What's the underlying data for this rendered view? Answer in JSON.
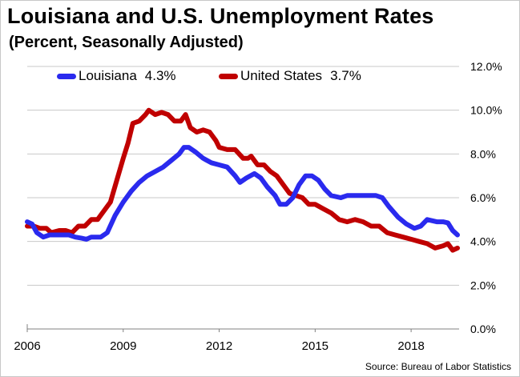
{
  "title": "Louisiana and U.S. Unemployment Rates",
  "subtitle": "(Percent, Seasonally Adjusted)",
  "source": "Source: Bureau of Labor Statistics",
  "legend": [
    {
      "label": "Louisiana",
      "value": "4.3%",
      "color": "#2a2aee"
    },
    {
      "label": "United States",
      "value": "3.7%",
      "color": "#c00000"
    }
  ],
  "chart_data": {
    "type": "line",
    "title": "Louisiana and U.S. Unemployment Rates",
    "subtitle": "(Percent, Seasonally Adjusted)",
    "xlim": [
      2006.0,
      2019.5
    ],
    "ylim": [
      0,
      12
    ],
    "y_ticks": [
      "0.0%",
      "2.0%",
      "4.0%",
      "6.0%",
      "8.0%",
      "10.0%",
      "12.0%"
    ],
    "x_ticks": [
      "2006",
      "2009",
      "2012",
      "2015",
      "2018"
    ],
    "y_axis_side": "right",
    "grid": "horizontal",
    "legend_position": "top",
    "series": [
      {
        "name": "Louisiana",
        "color": "#2a2aee",
        "points": [
          [
            2006.0,
            4.9
          ],
          [
            2006.15,
            4.8
          ],
          [
            2006.3,
            4.4
          ],
          [
            2006.5,
            4.2
          ],
          [
            2006.7,
            4.3
          ],
          [
            2007.0,
            4.3
          ],
          [
            2007.3,
            4.3
          ],
          [
            2007.5,
            4.2
          ],
          [
            2007.7,
            4.15
          ],
          [
            2007.85,
            4.1
          ],
          [
            2008.0,
            4.2
          ],
          [
            2008.3,
            4.2
          ],
          [
            2008.5,
            4.4
          ],
          [
            2008.75,
            5.2
          ],
          [
            2009.0,
            5.8
          ],
          [
            2009.25,
            6.3
          ],
          [
            2009.5,
            6.7
          ],
          [
            2009.75,
            7.0
          ],
          [
            2010.0,
            7.2
          ],
          [
            2010.25,
            7.4
          ],
          [
            2010.5,
            7.7
          ],
          [
            2010.75,
            8.0
          ],
          [
            2010.9,
            8.3
          ],
          [
            2011.05,
            8.3
          ],
          [
            2011.25,
            8.1
          ],
          [
            2011.5,
            7.8
          ],
          [
            2011.75,
            7.6
          ],
          [
            2012.0,
            7.5
          ],
          [
            2012.25,
            7.4
          ],
          [
            2012.5,
            7.0
          ],
          [
            2012.65,
            6.7
          ],
          [
            2012.85,
            6.9
          ],
          [
            2013.1,
            7.1
          ],
          [
            2013.3,
            6.9
          ],
          [
            2013.5,
            6.5
          ],
          [
            2013.75,
            6.1
          ],
          [
            2013.9,
            5.7
          ],
          [
            2014.1,
            5.7
          ],
          [
            2014.3,
            6.0
          ],
          [
            2014.5,
            6.6
          ],
          [
            2014.7,
            7.0
          ],
          [
            2014.9,
            7.0
          ],
          [
            2015.1,
            6.8
          ],
          [
            2015.3,
            6.4
          ],
          [
            2015.5,
            6.1
          ],
          [
            2015.8,
            6.0
          ],
          [
            2016.0,
            6.1
          ],
          [
            2016.5,
            6.1
          ],
          [
            2016.9,
            6.1
          ],
          [
            2017.1,
            6.0
          ],
          [
            2017.3,
            5.6
          ],
          [
            2017.6,
            5.1
          ],
          [
            2017.85,
            4.8
          ],
          [
            2018.1,
            4.6
          ],
          [
            2018.3,
            4.7
          ],
          [
            2018.5,
            5.0
          ],
          [
            2018.8,
            4.9
          ],
          [
            2019.0,
            4.9
          ],
          [
            2019.15,
            4.85
          ],
          [
            2019.3,
            4.5
          ],
          [
            2019.45,
            4.3
          ]
        ]
      },
      {
        "name": "United States",
        "color": "#c00000",
        "points": [
          [
            2006.0,
            4.7
          ],
          [
            2006.2,
            4.7
          ],
          [
            2006.4,
            4.6
          ],
          [
            2006.6,
            4.6
          ],
          [
            2006.75,
            4.4
          ],
          [
            2007.0,
            4.5
          ],
          [
            2007.2,
            4.5
          ],
          [
            2007.4,
            4.4
          ],
          [
            2007.6,
            4.7
          ],
          [
            2007.8,
            4.7
          ],
          [
            2008.0,
            5.0
          ],
          [
            2008.2,
            5.0
          ],
          [
            2008.4,
            5.4
          ],
          [
            2008.6,
            5.8
          ],
          [
            2008.8,
            6.8
          ],
          [
            2009.0,
            7.8
          ],
          [
            2009.15,
            8.5
          ],
          [
            2009.3,
            9.4
          ],
          [
            2009.5,
            9.5
          ],
          [
            2009.7,
            9.8
          ],
          [
            2009.8,
            10.0
          ],
          [
            2010.0,
            9.8
          ],
          [
            2010.2,
            9.9
          ],
          [
            2010.4,
            9.8
          ],
          [
            2010.6,
            9.5
          ],
          [
            2010.8,
            9.5
          ],
          [
            2010.95,
            9.8
          ],
          [
            2011.1,
            9.2
          ],
          [
            2011.3,
            9.0
          ],
          [
            2011.5,
            9.1
          ],
          [
            2011.7,
            9.0
          ],
          [
            2011.9,
            8.6
          ],
          [
            2012.0,
            8.3
          ],
          [
            2012.25,
            8.2
          ],
          [
            2012.5,
            8.2
          ],
          [
            2012.75,
            7.8
          ],
          [
            2012.9,
            7.8
          ],
          [
            2013.0,
            7.9
          ],
          [
            2013.2,
            7.5
          ],
          [
            2013.4,
            7.5
          ],
          [
            2013.6,
            7.2
          ],
          [
            2013.8,
            7.0
          ],
          [
            2014.0,
            6.6
          ],
          [
            2014.2,
            6.2
          ],
          [
            2014.4,
            6.1
          ],
          [
            2014.6,
            6.0
          ],
          [
            2014.8,
            5.7
          ],
          [
            2015.0,
            5.7
          ],
          [
            2015.25,
            5.5
          ],
          [
            2015.5,
            5.3
          ],
          [
            2015.75,
            5.0
          ],
          [
            2016.0,
            4.9
          ],
          [
            2016.25,
            5.0
          ],
          [
            2016.5,
            4.9
          ],
          [
            2016.75,
            4.7
          ],
          [
            2017.0,
            4.7
          ],
          [
            2017.25,
            4.4
          ],
          [
            2017.5,
            4.3
          ],
          [
            2017.75,
            4.2
          ],
          [
            2018.0,
            4.1
          ],
          [
            2018.25,
            4.0
          ],
          [
            2018.5,
            3.9
          ],
          [
            2018.75,
            3.7
          ],
          [
            2019.0,
            3.8
          ],
          [
            2019.15,
            3.9
          ],
          [
            2019.3,
            3.6
          ],
          [
            2019.45,
            3.7
          ]
        ]
      }
    ]
  }
}
